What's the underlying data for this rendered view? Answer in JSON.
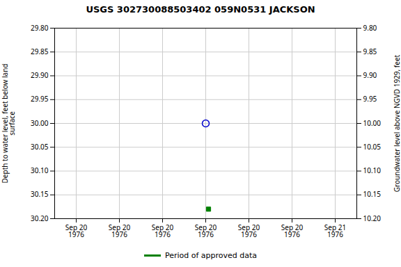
{
  "chart_data": {
    "type": "scatter",
    "title": "USGS 302730088503402 059N0531   JACKSON",
    "ylabel": "Depth to water level, feet below land\nsurface",
    "y2label": "Groundwater level above NGVD 1929, feet",
    "categories": [
      "Sep 20\n1976",
      "Sep 20\n1976",
      "Sep 20\n1976",
      "Sep 20\n1976",
      "Sep 20\n1976",
      "Sep 20\n1976",
      "Sep 21\n1976"
    ],
    "series": [
      {
        "color": "#0000cc",
        "marker": "circle",
        "values": [
          null,
          null,
          null,
          30.0,
          null,
          null,
          null
        ]
      },
      {
        "name": "Period of approved data",
        "color": "#008000",
        "marker": "square",
        "values": [
          null,
          null,
          null,
          30.18,
          null,
          null,
          null
        ]
      }
    ],
    "ylim": [
      30.2,
      29.8
    ],
    "yticks": [
      {
        "value": 29.8,
        "label": "29.80"
      },
      {
        "value": 29.85,
        "label": "29.85"
      },
      {
        "value": 29.9,
        "label": "29.90"
      },
      {
        "value": 29.95,
        "label": "29.95"
      },
      {
        "value": 30.0,
        "label": "30.00"
      },
      {
        "value": 30.05,
        "label": "30.05"
      },
      {
        "value": 30.1,
        "label": "30.10"
      },
      {
        "value": 30.15,
        "label": "30.15"
      },
      {
        "value": 30.2,
        "label": "30.20"
      }
    ],
    "y2lim": [
      10.2,
      9.8
    ],
    "y2ticks": [
      {
        "value": 10.2,
        "label": "10.20"
      },
      {
        "value": 10.15,
        "label": "10.15"
      },
      {
        "value": 10.1,
        "label": "10.10"
      },
      {
        "value": 10.05,
        "label": "10.05"
      },
      {
        "value": 10.0,
        "label": "10.00"
      },
      {
        "value": 9.95,
        "label": "9.95"
      },
      {
        "value": 9.9,
        "label": "9.90"
      },
      {
        "value": 9.85,
        "label": "9.85"
      },
      {
        "value": 9.8,
        "label": "9.80"
      }
    ],
    "grid": true,
    "legend": "bottom"
  }
}
